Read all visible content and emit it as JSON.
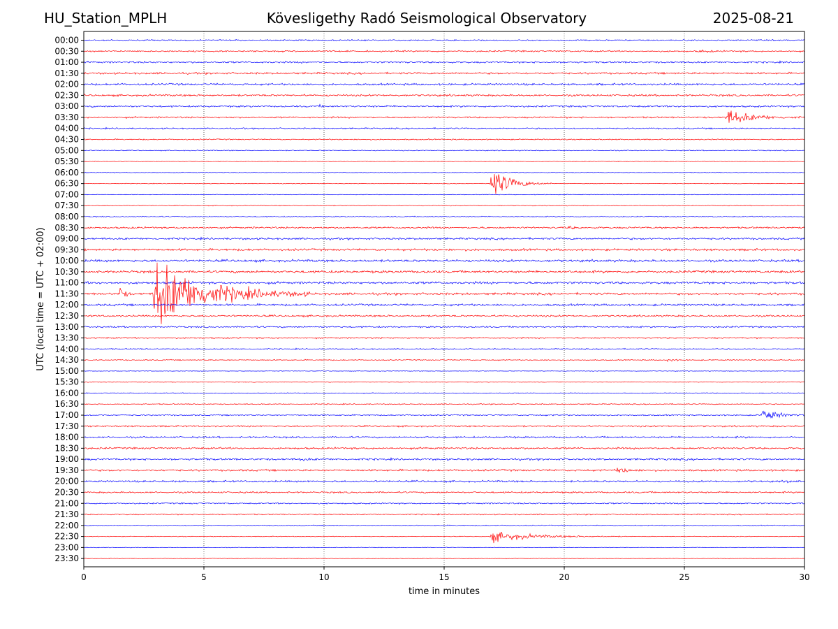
{
  "header": {
    "station": "HU_Station_MPLH",
    "title": "Kövesligethy Radó Seismological Observatory",
    "date": "2025-08-21"
  },
  "chart_data": {
    "type": "line",
    "title": "Kövesligethy Radó Seismological Observatory",
    "xlabel": "time in minutes",
    "ylabel": "UTC (local time = UTC + 02:00)",
    "xlim": [
      0,
      30
    ],
    "x_ticks": [
      "0",
      "5",
      "10",
      "15",
      "20",
      "25",
      "30"
    ],
    "vertical_grid": "dotted at each x tick",
    "row_labels": [
      "00:00",
      "00:30",
      "01:00",
      "01:30",
      "02:00",
      "02:30",
      "03:00",
      "03:30",
      "04:00",
      "04:30",
      "05:00",
      "05:30",
      "06:00",
      "06:30",
      "07:00",
      "07:30",
      "08:00",
      "08:30",
      "09:00",
      "09:30",
      "10:00",
      "10:30",
      "11:00",
      "11:30",
      "12:00",
      "12:30",
      "13:00",
      "13:30",
      "14:00",
      "14:30",
      "15:00",
      "15:30",
      "16:00",
      "16:30",
      "17:00",
      "17:30",
      "18:00",
      "18:30",
      "19:00",
      "19:30",
      "20:00",
      "20:30",
      "21:00",
      "21:30",
      "22:00",
      "22:30",
      "23:00",
      "23:30"
    ],
    "colors": {
      "even_rows": "#0000ff",
      "odd_rows": "#ff0000"
    },
    "events": [
      {
        "row": "00:30",
        "start_min": 25.6,
        "amplitude": 0.3,
        "duration_min": 1.2
      },
      {
        "row": "03:00",
        "start_min": 9.8,
        "amplitude": 0.2,
        "duration_min": 0.6
      },
      {
        "row": "03:30",
        "start_min": 26.7,
        "amplitude": 1.9,
        "duration_min": 3.3
      },
      {
        "row": "06:30",
        "start_min": 16.9,
        "amplitude": 4.0,
        "duration_min": 2.6
      },
      {
        "row": "08:30",
        "start_min": 20.1,
        "amplitude": 0.4,
        "duration_min": 0.8
      },
      {
        "row": "11:30",
        "start_min": 1.5,
        "amplitude": 2.3,
        "duration_min": 0.5
      },
      {
        "row": "11:30",
        "start_min": 2.9,
        "amplitude": 8.5,
        "duration_min": 6.5
      },
      {
        "row": "14:30",
        "start_min": 24.3,
        "amplitude": 0.4,
        "duration_min": 0.8
      },
      {
        "row": "17:00",
        "start_min": 28.2,
        "amplitude": 1.6,
        "duration_min": 2.0
      },
      {
        "row": "19:00",
        "start_min": 9.0,
        "amplitude": 0.3,
        "duration_min": 0.9
      },
      {
        "row": "19:30",
        "start_min": 22.2,
        "amplitude": 0.9,
        "duration_min": 1.1
      },
      {
        "row": "20:00",
        "start_min": 29.3,
        "amplitude": 0.3,
        "duration_min": 0.7
      },
      {
        "row": "22:30",
        "start_min": 16.9,
        "amplitude": 1.2,
        "duration_min": 5.5
      }
    ]
  }
}
